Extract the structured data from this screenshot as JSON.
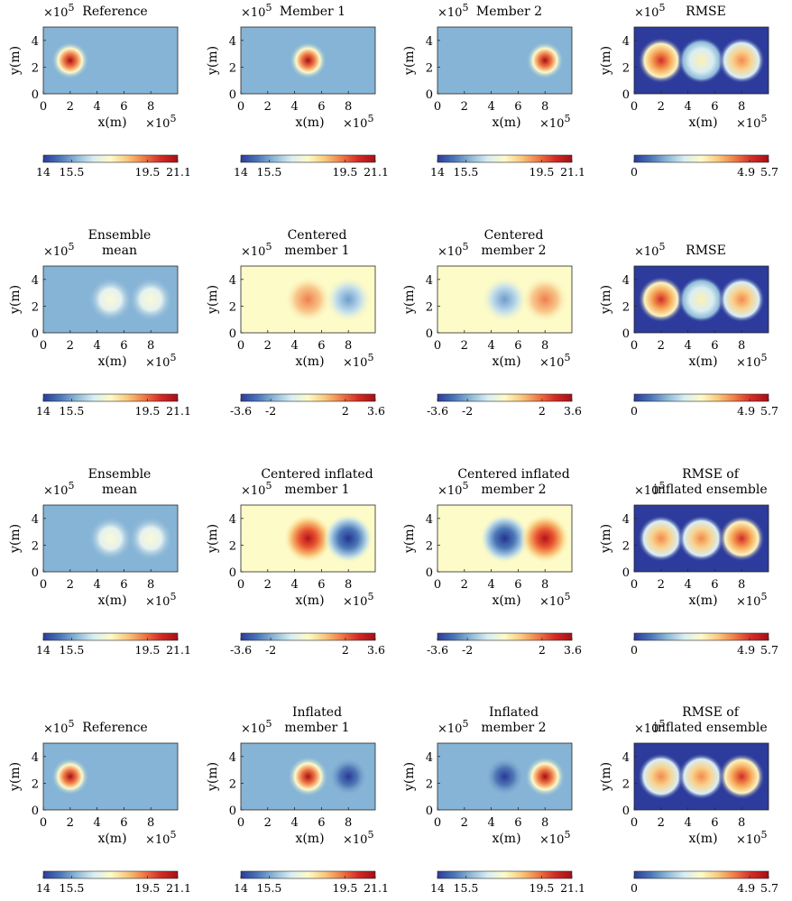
{
  "figure": {
    "x_axis_label": "x(m)",
    "y_axis_label": "y(m)",
    "axis_multiplier_base": "×10",
    "axis_multiplier_exponent": "5",
    "x_ticks": [
      "0",
      "2",
      "4",
      "6",
      "8"
    ],
    "y_ticks": [
      "0",
      "2",
      "4"
    ],
    "colorbar_palette": [
      "#2c3b9c",
      "#4a77b8",
      "#8fbad8",
      "#d9eef3",
      "#fdfbc8",
      "#f9c97c",
      "#ef7a45",
      "#d22b26",
      "#a50f15"
    ]
  },
  "chart_data": [
    {
      "type": "heatmap",
      "title": [
        "Reference"
      ],
      "field": "reference",
      "colorbar": {
        "labels": [
          "14",
          "15.5",
          "19.5",
          "21.1"
        ],
        "values": [
          14,
          15.5,
          19.5,
          21.1
        ],
        "range": [
          14,
          21.1
        ]
      }
    },
    {
      "type": "heatmap",
      "title": [
        "Member 1"
      ],
      "field": "member1",
      "colorbar": {
        "labels": [
          "14",
          "15.5",
          "19.5",
          "21.1"
        ],
        "values": [
          14,
          15.5,
          19.5,
          21.1
        ],
        "range": [
          14,
          21.1
        ]
      }
    },
    {
      "type": "heatmap",
      "title": [
        "Member 2"
      ],
      "field": "member2",
      "colorbar": {
        "labels": [
          "14",
          "15.5",
          "19.5",
          "21.1"
        ],
        "values": [
          14,
          15.5,
          19.5,
          21.1
        ],
        "range": [
          14,
          21.1
        ]
      }
    },
    {
      "type": "heatmap",
      "title": [
        "RMSE"
      ],
      "field": "rmse",
      "colorbar": {
        "labels": [
          "0",
          "4.9",
          "5.7"
        ],
        "values": [
          0,
          4.9,
          5.7
        ],
        "range": [
          0,
          5.7
        ]
      }
    },
    {
      "type": "heatmap",
      "title": [
        "Ensemble",
        "mean"
      ],
      "field": "mean",
      "colorbar": {
        "labels": [
          "14",
          "15.5",
          "19.5",
          "21.1"
        ],
        "values": [
          14,
          15.5,
          19.5,
          21.1
        ],
        "range": [
          14,
          21.1
        ]
      }
    },
    {
      "type": "heatmap",
      "title": [
        "Centered",
        "member 1"
      ],
      "field": "centered1",
      "colorbar": {
        "labels": [
          "-3.6",
          "-2",
          "2",
          "3.6"
        ],
        "values": [
          -3.6,
          -2,
          2,
          3.6
        ],
        "range": [
          -3.6,
          3.6
        ]
      }
    },
    {
      "type": "heatmap",
      "title": [
        "Centered",
        "member 2"
      ],
      "field": "centered2",
      "colorbar": {
        "labels": [
          "-3.6",
          "-2",
          "2",
          "3.6"
        ],
        "values": [
          -3.6,
          -2,
          2,
          3.6
        ],
        "range": [
          -3.6,
          3.6
        ]
      }
    },
    {
      "type": "heatmap",
      "title": [
        "RMSE"
      ],
      "field": "rmse",
      "colorbar": {
        "labels": [
          "0",
          "4.9",
          "5.7"
        ],
        "values": [
          0,
          4.9,
          5.7
        ],
        "range": [
          0,
          5.7
        ]
      }
    },
    {
      "type": "heatmap",
      "title": [
        "Ensemble",
        "mean"
      ],
      "field": "mean",
      "colorbar": {
        "labels": [
          "14",
          "15.5",
          "19.5",
          "21.1"
        ],
        "values": [
          14,
          15.5,
          19.5,
          21.1
        ],
        "range": [
          14,
          21.1
        ]
      }
    },
    {
      "type": "heatmap",
      "title": [
        "Centered inflated",
        "member 1"
      ],
      "field": "centered_inflated1",
      "colorbar": {
        "labels": [
          "-3.6",
          "-2",
          "2",
          "3.6"
        ],
        "values": [
          -3.6,
          -2,
          2,
          3.6
        ],
        "range": [
          -3.6,
          3.6
        ]
      }
    },
    {
      "type": "heatmap",
      "title": [
        "Centered inflated",
        "member 2"
      ],
      "field": "centered_inflated2",
      "colorbar": {
        "labels": [
          "-3.6",
          "-2",
          "2",
          "3.6"
        ],
        "values": [
          -3.6,
          -2,
          2,
          3.6
        ],
        "range": [
          -3.6,
          3.6
        ]
      }
    },
    {
      "type": "heatmap",
      "title": [
        "RMSE of",
        "inflated ensemble"
      ],
      "field": "rmse_inflated",
      "colorbar": {
        "labels": [
          "0",
          "4.9",
          "5.7"
        ],
        "values": [
          0,
          4.9,
          5.7
        ],
        "range": [
          0,
          5.7
        ]
      }
    },
    {
      "type": "heatmap",
      "title": [
        "Reference"
      ],
      "field": "reference",
      "colorbar": {
        "labels": [
          "14",
          "15.5",
          "19.5",
          "21.1"
        ],
        "values": [
          14,
          15.5,
          19.5,
          21.1
        ],
        "range": [
          14,
          21.1
        ]
      }
    },
    {
      "type": "heatmap",
      "title": [
        "Inflated",
        "member 1"
      ],
      "field": "inflated1",
      "colorbar": {
        "labels": [
          "14",
          "15.5",
          "19.5",
          "21.1"
        ],
        "values": [
          14,
          15.5,
          19.5,
          21.1
        ],
        "range": [
          14,
          21.1
        ]
      }
    },
    {
      "type": "heatmap",
      "title": [
        "Inflated",
        "member 2"
      ],
      "field": "inflated2",
      "colorbar": {
        "labels": [
          "14",
          "15.5",
          "19.5",
          "21.1"
        ],
        "values": [
          14,
          15.5,
          19.5,
          21.1
        ],
        "range": [
          14,
          21.1
        ]
      }
    },
    {
      "type": "heatmap",
      "title": [
        "RMSE of",
        "inflated ensemble"
      ],
      "field": "rmse_inflated",
      "colorbar": {
        "labels": [
          "0",
          "4.9",
          "5.7"
        ],
        "values": [
          0,
          4.9,
          5.7
        ],
        "range": [
          0,
          5.7
        ]
      }
    }
  ]
}
